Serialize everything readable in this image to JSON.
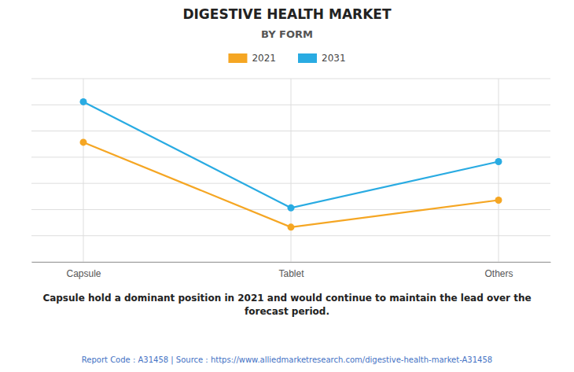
{
  "chart_data": {
    "type": "line",
    "title": "DIGESTIVE HEALTH MARKET",
    "subtitle": "BY FORM",
    "categories": [
      "Capsule",
      "Tablet",
      "Others"
    ],
    "series": [
      {
        "name": "2021",
        "color": "#F5A623",
        "values": [
          0.72,
          0.28,
          0.42
        ]
      },
      {
        "name": "2031",
        "color": "#29ABE2",
        "values": [
          0.93,
          0.38,
          0.62
        ]
      }
    ],
    "ylim": [
      0.1,
      1.05
    ],
    "yticks": [
      0.1,
      0.23571428571428574,
      0.37142857142857144,
      0.5071428571428571,
      0.6428571428571428,
      0.7785714285714286,
      0.9142857142857143,
      1.05
    ],
    "grid": true,
    "tick_labels": "x",
    "legend": "top",
    "marker": "circle",
    "annotations": [
      "Capsule hold a dominant position in 2021 and would continue to maintain the lead over the\nforecast period.",
      "Report Code : A31458  |  Source : https://www.alliedmarketresearch.com/digestive-health-market-A31458"
    ]
  }
}
